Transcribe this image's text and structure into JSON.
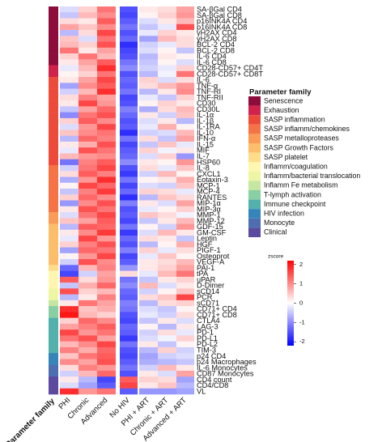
{
  "chart_data": {
    "type": "heatmap",
    "columns": [
      "PHI",
      "Chronic",
      "Advanced",
      "No HIV",
      "PHI + ART",
      "Chronic + ART",
      "Advanced + ART"
    ],
    "family_axis_label": "Parameter family",
    "legend_title": "Parameter family",
    "families": [
      {
        "name": "Senescence",
        "color": "#8e0c3b"
      },
      {
        "name": "Exhaustion",
        "color": "#d1224b"
      },
      {
        "name": "SASP inflammation",
        "color": "#ee4a3a"
      },
      {
        "name": "SASP inflamm/chemokines",
        "color": "#f57345"
      },
      {
        "name": "SASP metalloproteases",
        "color": "#fa9c57"
      },
      {
        "name": "SASP Growth Factors",
        "color": "#fdbe6b"
      },
      {
        "name": "SASP platelet",
        "color": "#fedc88"
      },
      {
        "name": "Inflamm/coagulation",
        "color": "#fff7b0"
      },
      {
        "name": "Inflamm/bacterial translocation",
        "color": "#eef6a4"
      },
      {
        "name": "Inflamm Fe metabolism",
        "color": "#c5e7a1"
      },
      {
        "name": "T-lymph activation",
        "color": "#89cfa4"
      },
      {
        "name": "Immune checkpoint",
        "color": "#52b0ad"
      },
      {
        "name": "HIV infection",
        "color": "#3585bb"
      },
      {
        "name": "Monocyte",
        "color": "#4e6eb2"
      },
      {
        "name": "Clinical",
        "color": "#5b4a9f"
      }
    ],
    "colorbar": {
      "label": "zscore",
      "zlim": [
        -2.2,
        2.2
      ],
      "ticks": [
        2,
        1,
        0,
        -1,
        -2
      ],
      "colors": [
        "#0000ff",
        "#ffffff",
        "#ff0000"
      ]
    },
    "rows": [
      {
        "label": "SA-βGal CD4",
        "family": "Senescence",
        "values": [
          -0.3,
          0.4,
          1.2,
          -1.5,
          0.2,
          0.3,
          0.8
        ]
      },
      {
        "label": "SA-βGal CD8",
        "family": "Senescence",
        "values": [
          -0.5,
          0.6,
          1.0,
          -1.6,
          0.1,
          0.4,
          0.9
        ]
      },
      {
        "label": "p16INK4A CD4",
        "family": "Senescence",
        "values": [
          0.3,
          0.2,
          1.4,
          -1.4,
          -0.3,
          0.2,
          0.6
        ]
      },
      {
        "label": "p16INK4A CD8",
        "family": "Senescence",
        "values": [
          0.8,
          0.5,
          1.0,
          -1.2,
          -0.5,
          -0.2,
          1.5
        ]
      },
      {
        "label": "γH2AX CD4",
        "family": "Senescence",
        "values": [
          -0.6,
          0.3,
          1.6,
          -1.5,
          -0.2,
          0.4,
          0.2
        ]
      },
      {
        "label": "γH2AX CD8",
        "family": "Senescence",
        "values": [
          0.5,
          -0.3,
          1.2,
          -1.3,
          -0.8,
          0.6,
          0.3
        ]
      },
      {
        "label": "BCL-2 CD4",
        "family": "Senescence",
        "values": [
          0.6,
          0.4,
          1.5,
          -1.8,
          -0.4,
          -0.2,
          0.3
        ]
      },
      {
        "label": "BCL-2 CD8",
        "family": "Senescence",
        "values": [
          1.2,
          0.2,
          0.8,
          -1.6,
          -0.3,
          0.1,
          -0.5
        ]
      },
      {
        "label": "IL-6 CD4",
        "family": "Senescence",
        "values": [
          0.4,
          1.2,
          0.6,
          -1.5,
          -0.6,
          0.2,
          0.1
        ]
      },
      {
        "label": "IL-6 CD8",
        "family": "Senescence",
        "values": [
          0.2,
          0.8,
          1.4,
          -1.2,
          -0.5,
          0.1,
          -0.3
        ]
      },
      {
        "label": "CD28-CD57+ CD4T",
        "family": "Exhaustion",
        "values": [
          -0.2,
          0.6,
          1.8,
          -1.0,
          -0.4,
          -0.2,
          0.4
        ]
      },
      {
        "label": "CD28-CD57+ CD8T",
        "family": "Exhaustion",
        "values": [
          0.1,
          0.4,
          1.2,
          -1.5,
          -0.6,
          -0.1,
          1.2
        ]
      },
      {
        "label": "IL-6",
        "family": "SASP inflammation",
        "values": [
          0.2,
          0.8,
          1.6,
          -1.3,
          0.4,
          -0.3,
          0.3
        ]
      },
      {
        "label": "TNF-α",
        "family": "SASP inflammation",
        "values": [
          -0.8,
          1.0,
          1.4,
          -1.4,
          0.3,
          0.6,
          0.9
        ]
      },
      {
        "label": "TNF-RI",
        "family": "SASP inflammation",
        "values": [
          -0.4,
          0.6,
          1.8,
          -1.2,
          -0.6,
          0.2,
          1.0
        ]
      },
      {
        "label": "TNF-RII",
        "family": "SASP inflammation",
        "values": [
          0.3,
          1.1,
          0.8,
          -1.6,
          -0.2,
          -0.5,
          0.4
        ]
      },
      {
        "label": "CD30",
        "family": "SASP inflammation",
        "values": [
          0.2,
          1.6,
          0.9,
          -1.5,
          0.1,
          0.4,
          0.2
        ]
      },
      {
        "label": "CD30L",
        "family": "SASP inflammation",
        "values": [
          -0.5,
          0.8,
          1.3,
          -1.1,
          -0.7,
          0.3,
          0.6
        ]
      },
      {
        "label": "IL-1α",
        "family": "SASP inflammation",
        "values": [
          -1.0,
          1.2,
          1.5,
          -1.3,
          0.2,
          -0.4,
          0.5
        ]
      },
      {
        "label": "IL-1β",
        "family": "SASP inflammation",
        "values": [
          0.4,
          1.4,
          1.0,
          -1.5,
          -0.3,
          0.2,
          -0.6
        ]
      },
      {
        "label": "IL-1RA",
        "family": "SASP inflammation",
        "values": [
          -0.3,
          0.9,
          1.6,
          -1.4,
          -0.2,
          0.7,
          0.1
        ]
      },
      {
        "label": "IL-10",
        "family": "SASP inflammation",
        "values": [
          0.5,
          1.0,
          1.2,
          -1.8,
          -0.4,
          -0.3,
          0.6
        ]
      },
      {
        "label": "IFN-α",
        "family": "SASP inflammation",
        "values": [
          -0.6,
          1.3,
          1.1,
          -1.2,
          0.3,
          -0.5,
          0.8
        ]
      },
      {
        "label": "IL-15",
        "family": "SASP inflammation",
        "values": [
          0.2,
          0.7,
          1.5,
          -1.6,
          -0.5,
          0.5,
          -0.2
        ]
      },
      {
        "label": "MIF",
        "family": "SASP inflammation",
        "values": [
          -0.2,
          1.5,
          1.2,
          -1.4,
          0.4,
          -0.1,
          0.2
        ]
      },
      {
        "label": "IL-7",
        "family": "SASP inflammation",
        "values": [
          0.6,
          0.9,
          1.0,
          -1.3,
          -0.3,
          0.4,
          -0.9
        ]
      },
      {
        "label": "HSP60",
        "family": "SASP inflammation",
        "values": [
          -1.2,
          1.1,
          1.4,
          -1.0,
          0.2,
          0.1,
          0.9
        ]
      },
      {
        "label": "IL-8",
        "family": "SASP inflamm/chemokines",
        "values": [
          -0.4,
          1.2,
          1.6,
          -1.5,
          0.3,
          -0.2,
          0.5
        ]
      },
      {
        "label": "CXCL1",
        "family": "SASP inflamm/chemokines",
        "values": [
          0.3,
          1.4,
          1.1,
          -1.7,
          -0.4,
          0.6,
          0.1
        ]
      },
      {
        "label": "Eotaxin-3",
        "family": "SASP inflamm/chemokines",
        "values": [
          -0.7,
          0.9,
          1.8,
          -1.2,
          0.1,
          0.2,
          0.7
        ]
      },
      {
        "label": "MCP-1",
        "family": "SASP inflamm/chemokines",
        "values": [
          0.1,
          1.6,
          1.3,
          -1.6,
          -0.3,
          -0.4,
          0.5
        ]
      },
      {
        "label": "MCP-4",
        "family": "SASP inflamm/chemokines",
        "values": [
          -0.5,
          1.1,
          1.7,
          -1.3,
          0.4,
          0.3,
          -0.2
        ]
      },
      {
        "label": "RANTES",
        "family": "SASP inflamm/chemokines",
        "values": [
          0.4,
          1.3,
          1.0,
          -1.8,
          -0.6,
          0.5,
          0.3
        ]
      },
      {
        "label": "MIP-1α",
        "family": "SASP inflamm/chemokines",
        "values": [
          -0.9,
          1.0,
          1.5,
          -1.1,
          0.2,
          -0.3,
          0.8
        ]
      },
      {
        "label": "MIP-3α",
        "family": "SASP inflamm/chemokines",
        "values": [
          0.2,
          1.5,
          1.2,
          -1.5,
          -0.2,
          0.1,
          0.4
        ]
      },
      {
        "label": "MMP-1",
        "family": "SASP metalloproteases",
        "values": [
          -0.3,
          1.2,
          1.6,
          -1.4,
          0.5,
          0.3,
          -0.1
        ]
      },
      {
        "label": "MMP-12",
        "family": "SASP metalloproteases",
        "values": [
          0.5,
          0.8,
          1.4,
          -1.6,
          -0.5,
          0.2,
          0.6
        ]
      },
      {
        "label": "GDF-15",
        "family": "SASP Growth Factors",
        "values": [
          -0.6,
          1.4,
          1.3,
          -1.2,
          0.1,
          -0.4,
          0.9
        ]
      },
      {
        "label": "GM-CSF",
        "family": "SASP Growth Factors",
        "values": [
          0.2,
          1.0,
          1.7,
          -1.7,
          -0.3,
          0.6,
          0.2
        ]
      },
      {
        "label": "Leptin",
        "family": "SASP Growth Factors",
        "values": [
          -0.2,
          1.6,
          0.9,
          -1.3,
          0.3,
          0.2,
          -0.5
        ]
      },
      {
        "label": "HGF",
        "family": "SASP Growth Factors",
        "values": [
          0.4,
          1.1,
          1.5,
          -1.5,
          -0.6,
          0.1,
          0.7
        ]
      },
      {
        "label": "PIGF-1",
        "family": "SASP Growth Factors",
        "values": [
          -0.8,
          1.3,
          1.2,
          -1.1,
          0.4,
          -0.2,
          0.3
        ]
      },
      {
        "label": "Osteoprot",
        "family": "SASP Growth Factors",
        "values": [
          0.1,
          0.9,
          1.6,
          -1.6,
          -0.2,
          0.5,
          0.1
        ]
      },
      {
        "label": "VEGF-A",
        "family": "SASP Growth Factors",
        "values": [
          -0.4,
          1.5,
          1.0,
          -1.4,
          0.2,
          0.3,
          0.6
        ]
      },
      {
        "label": "PAI-1",
        "family": "SASP platelet",
        "values": [
          -1.3,
          0.6,
          1.1,
          -0.9,
          0.2,
          0.4,
          0.8
        ]
      },
      {
        "label": "tPA",
        "family": "Inflamm/coagulation",
        "values": [
          -1.6,
          -0.4,
          0.8,
          0.3,
          -0.2,
          0.6,
          1.2
        ]
      },
      {
        "label": "uPAR",
        "family": "Inflamm/coagulation",
        "values": [
          1.4,
          0.3,
          0.9,
          -1.2,
          -0.5,
          0.2,
          0.4
        ]
      },
      {
        "label": "D-Dimer",
        "family": "Inflamm/coagulation",
        "values": [
          -0.5,
          0.7,
          1.3,
          -1.0,
          0.6,
          -0.3,
          0.2
        ]
      },
      {
        "label": "sCD14",
        "family": "Inflamm/bacterial translocation",
        "values": [
          1.5,
          0.4,
          0.6,
          -1.3,
          -0.4,
          0.1,
          0.5
        ]
      },
      {
        "label": "PCR",
        "family": "Inflamm/bacterial translocation",
        "values": [
          -0.6,
          0.2,
          1.1,
          -1.4,
          0.3,
          0.5,
          1.6
        ]
      },
      {
        "label": "sCD71",
        "family": "Inflamm Fe metabolism",
        "values": [
          0.2,
          1.2,
          0.8,
          -1.1,
          -0.6,
          0.3,
          0.4
        ]
      },
      {
        "label": "CD71+ CD4",
        "family": "T-lymph activation",
        "values": [
          1.8,
          0.5,
          0.7,
          -1.2,
          -0.3,
          -0.5,
          0.1
        ]
      },
      {
        "label": "CD71+ CD8",
        "family": "T-lymph activation",
        "values": [
          2.0,
          0.6,
          0.4,
          -1.5,
          -0.2,
          -0.4,
          0.3
        ]
      },
      {
        "label": "CTLA4",
        "family": "Immune checkpoint",
        "values": [
          0.4,
          1.3,
          1.0,
          -1.6,
          -0.5,
          0.2,
          -0.3
        ]
      },
      {
        "label": "LAG-3",
        "family": "Immune checkpoint",
        "values": [
          0.8,
          1.1,
          1.4,
          -1.3,
          0.1,
          -0.6,
          0.2
        ]
      },
      {
        "label": "PD-1",
        "family": "Immune checkpoint",
        "values": [
          1.6,
          0.9,
          1.2,
          -1.4,
          -0.4,
          0.3,
          -0.2
        ]
      },
      {
        "label": "PD-L1",
        "family": "Immune checkpoint",
        "values": [
          1.2,
          1.5,
          0.8,
          -1.7,
          -0.3,
          -0.1,
          0.4
        ]
      },
      {
        "label": "PD-L2",
        "family": "Immune checkpoint",
        "values": [
          0.6,
          1.0,
          1.6,
          -1.2,
          0.2,
          -0.5,
          0.1
        ]
      },
      {
        "label": "TIM-3",
        "family": "Immune checkpoint",
        "values": [
          1.1,
          0.7,
          1.3,
          -1.5,
          -0.6,
          0.4,
          -0.4
        ]
      },
      {
        "label": "p24 CD4",
        "family": "HIV infection",
        "values": [
          0.5,
          1.2,
          1.4,
          -1.6,
          -0.8,
          -0.4,
          -0.3
        ]
      },
      {
        "label": "p24 Macrophages",
        "family": "HIV infection",
        "values": [
          1.0,
          0.8,
          1.5,
          -1.4,
          -0.7,
          -0.6,
          -0.5
        ]
      },
      {
        "label": "IL-6 Monocytes",
        "family": "Monocyte",
        "values": [
          0.3,
          1.1,
          0.9,
          -1.2,
          -0.4,
          0.6,
          0.2
        ]
      },
      {
        "label": "CD87 Monocytes",
        "family": "Monocyte",
        "values": [
          -0.4,
          0.6,
          1.3,
          -1.5,
          0.2,
          -0.3,
          0.8
        ]
      },
      {
        "label": "CD4 count",
        "family": "Clinical",
        "values": [
          0.2,
          -0.6,
          -1.6,
          1.4,
          0.4,
          0.3,
          -0.8
        ]
      },
      {
        "label": "CD4/CD8",
        "family": "Clinical",
        "values": [
          -0.3,
          -0.8,
          -1.4,
          1.6,
          0.2,
          0.5,
          -0.6
        ]
      },
      {
        "label": "VL",
        "family": "Clinical",
        "values": [
          1.8,
          0.9,
          1.2,
          -1.4,
          -0.9,
          -0.9,
          -0.8
        ]
      }
    ]
  }
}
